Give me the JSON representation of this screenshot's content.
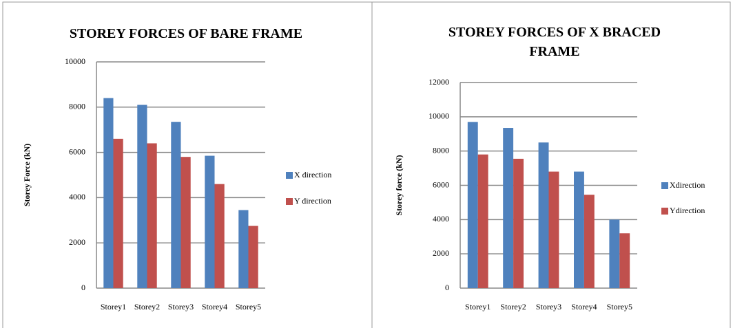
{
  "chart_data": [
    {
      "type": "bar",
      "title": "STOREY FORCES OF BARE FRAME",
      "y_label": "Storey Force (kN)",
      "categories": [
        "Storey1",
        "Storey2",
        "Storey3",
        "Storey4",
        "Storey5"
      ],
      "series": [
        {
          "name": "X direction",
          "color": "#4f81bd",
          "values": [
            8400,
            8100,
            7350,
            5850,
            3450
          ]
        },
        {
          "name": "Y direction",
          "color": "#c0504d",
          "values": [
            6600,
            6400,
            5800,
            4600,
            2750
          ]
        }
      ],
      "ylim": [
        0,
        10000
      ],
      "yticks": [
        0,
        2000,
        4000,
        6000,
        8000,
        10000
      ],
      "grid": true,
      "legend": "right"
    },
    {
      "type": "bar",
      "title": "STOREY FORCES OF X BRACED FRAME",
      "y_label": "Storey force (kN)",
      "categories": [
        "Storey1",
        "Storey2",
        "Storey3",
        "Storey4",
        "Storey5"
      ],
      "series": [
        {
          "name": "Xdirection",
          "color": "#4f81bd",
          "values": [
            9700,
            9350,
            8500,
            6800,
            4000
          ]
        },
        {
          "name": "Ydirection",
          "color": "#c0504d",
          "values": [
            7800,
            7550,
            6800,
            5450,
            3200
          ]
        }
      ],
      "ylim": [
        0,
        12000
      ],
      "yticks": [
        0,
        2000,
        4000,
        6000,
        8000,
        10000,
        12000
      ],
      "grid": true,
      "legend": "right"
    }
  ]
}
